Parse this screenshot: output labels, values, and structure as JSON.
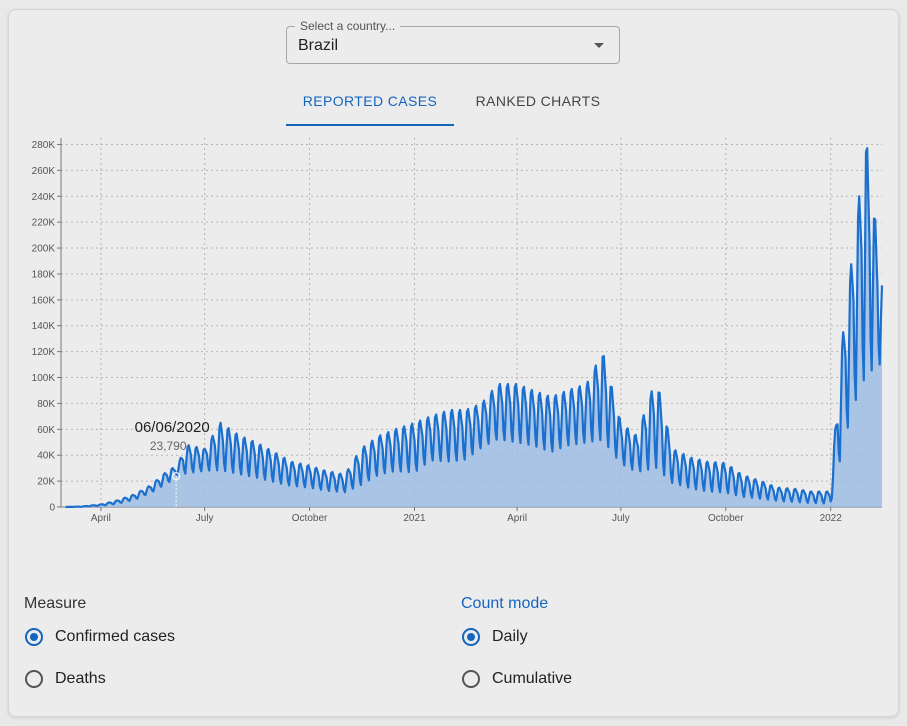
{
  "country_select": {
    "label": "Select a country...",
    "value": "Brazil"
  },
  "tabs": [
    {
      "label": "REPORTED CASES",
      "active": true
    },
    {
      "label": "RANKED CHARTS",
      "active": false
    }
  ],
  "tooltip": {
    "date": "06/06/2020",
    "value": "23,790"
  },
  "measure": {
    "label": "Measure",
    "options": [
      {
        "label": "Confirmed cases",
        "checked": true
      },
      {
        "label": "Deaths",
        "checked": false
      }
    ]
  },
  "count_mode": {
    "label": "Count mode",
    "options": [
      {
        "label": "Daily",
        "checked": true
      },
      {
        "label": "Cumulative",
        "checked": false
      }
    ]
  },
  "colors": {
    "accent": "#1565c0",
    "line": "#1a6fcf",
    "area": "#9dbde4"
  },
  "chart_data": {
    "type": "area",
    "title": "",
    "xlabel": "",
    "ylabel": "",
    "ylim": [
      0,
      285000
    ],
    "y_ticks": [
      0,
      20000,
      40000,
      60000,
      80000,
      100000,
      120000,
      140000,
      160000,
      180000,
      200000,
      220000,
      240000,
      260000,
      280000
    ],
    "y_tick_labels": [
      "0",
      "20K",
      "40K",
      "60K",
      "80K",
      "100K",
      "120K",
      "140K",
      "160K",
      "180K",
      "200K",
      "220K",
      "240K",
      "260K",
      "280K"
    ],
    "x_range": [
      "2020-02-26",
      "2022-02-15"
    ],
    "x_ticks": [
      "2020-04-01",
      "2020-07-01",
      "2020-10-01",
      "2021-01-01",
      "2021-04-01",
      "2021-07-01",
      "2021-10-01",
      "2022-01-01"
    ],
    "x_tick_labels": [
      "April",
      "July",
      "October",
      "2021",
      "April",
      "July",
      "October",
      "2022"
    ],
    "grid": true,
    "highlight": {
      "x": "2020-06-06",
      "y": 23790
    },
    "series": [
      {
        "name": "",
        "x": [
          "2020-03-01",
          "2020-03-15",
          "2020-04-01",
          "2020-04-15",
          "2020-05-01",
          "2020-05-15",
          "2020-06-01",
          "2020-06-06",
          "2020-06-15",
          "2020-07-01",
          "2020-07-15",
          "2020-08-01",
          "2020-08-15",
          "2020-09-01",
          "2020-09-15",
          "2020-10-01",
          "2020-10-15",
          "2020-11-01",
          "2020-11-15",
          "2020-12-01",
          "2020-12-15",
          "2021-01-01",
          "2021-01-15",
          "2021-02-01",
          "2021-02-15",
          "2021-03-01",
          "2021-03-15",
          "2021-04-01",
          "2021-04-15",
          "2021-05-01",
          "2021-05-15",
          "2021-06-01",
          "2021-06-15",
          "2021-07-01",
          "2021-07-15",
          "2021-08-01",
          "2021-08-15",
          "2021-09-01",
          "2021-09-15",
          "2021-10-01",
          "2021-10-15",
          "2021-11-01",
          "2021-11-15",
          "2021-12-01",
          "2021-12-15",
          "2022-01-01",
          "2022-01-10",
          "2022-01-20",
          "2022-02-01",
          "2022-02-15"
        ],
        "low": [
          0,
          100,
          800,
          2000,
          5000,
          10000,
          18000,
          23790,
          22000,
          25000,
          22000,
          20000,
          18000,
          15000,
          13000,
          12000,
          10000,
          9000,
          12000,
          20000,
          22000,
          20000,
          30000,
          28000,
          30000,
          40000,
          45000,
          42000,
          40000,
          35000,
          40000,
          42000,
          40000,
          28000,
          22000,
          18000,
          14000,
          10000,
          8000,
          7000,
          5000,
          4000,
          3000,
          2000,
          1500,
          1000,
          25000,
          55000,
          70000,
          100000
        ],
        "high": [
          0,
          400,
          2000,
          5000,
          10000,
          17000,
          30000,
          30000,
          48000,
          45000,
          65000,
          55000,
          50000,
          42000,
          35000,
          32000,
          28000,
          25000,
          45000,
          55000,
          60000,
          65000,
          70000,
          75000,
          75000,
          80000,
          95000,
          95000,
          90000,
          85000,
          90000,
          95000,
          120000,
          65000,
          55000,
          100000,
          45000,
          38000,
          35000,
          34000,
          25000,
          20000,
          15000,
          14000,
          12000,
          12000,
          120000,
          195000,
          285000,
          175000
        ]
      }
    ]
  }
}
